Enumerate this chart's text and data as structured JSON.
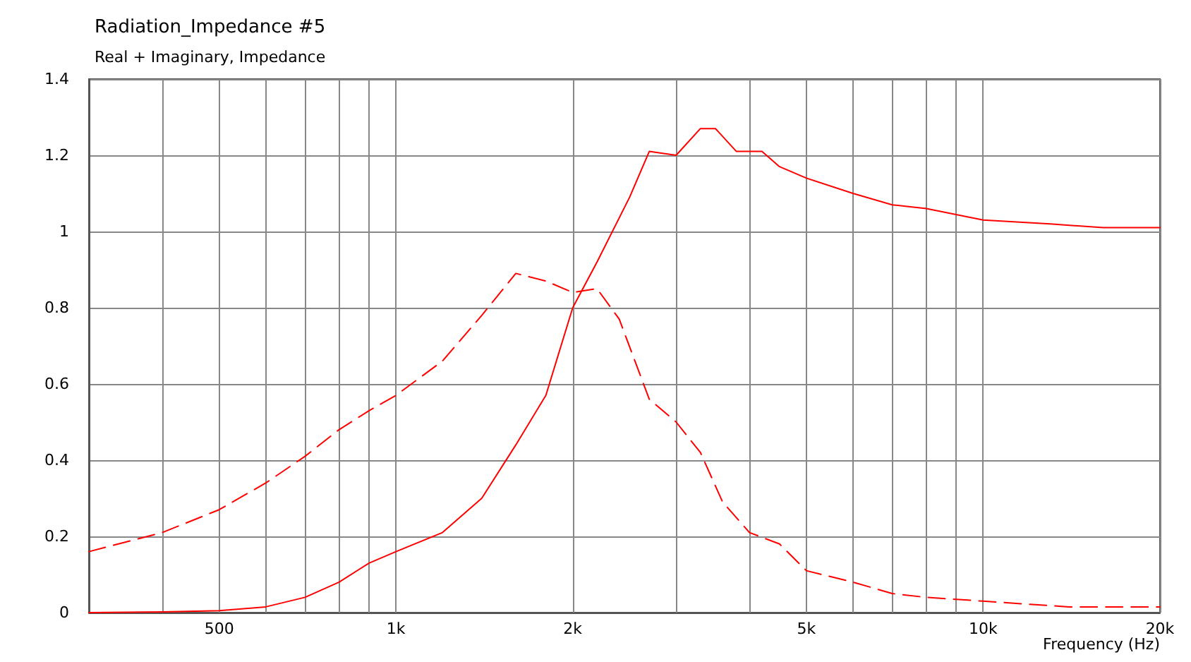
{
  "chart_data": {
    "type": "line",
    "title": "Radiation_Impedance #5",
    "subtitle": "Real + Imaginary, Impedance",
    "xlabel": "Frequency (Hz)",
    "log": "x",
    "grid": true,
    "marker": "none",
    "xlim": [
      300,
      20000
    ],
    "xticks": [
      {
        "value": 400,
        "label": null
      },
      {
        "value": 500,
        "label": "500"
      },
      {
        "value": 600,
        "label": null
      },
      {
        "value": 700,
        "label": null
      },
      {
        "value": 800,
        "label": null
      },
      {
        "value": 900,
        "label": null
      },
      {
        "value": 1000,
        "label": "1k"
      },
      {
        "value": 2000,
        "label": "2k"
      },
      {
        "value": 3000,
        "label": null
      },
      {
        "value": 4000,
        "label": null
      },
      {
        "value": 5000,
        "label": "5k"
      },
      {
        "value": 6000,
        "label": null
      },
      {
        "value": 7000,
        "label": null
      },
      {
        "value": 8000,
        "label": null
      },
      {
        "value": 9000,
        "label": null
      },
      {
        "value": 10000,
        "label": "10k"
      },
      {
        "value": 20000,
        "label": "20k"
      }
    ],
    "ylim": [
      0,
      1.4
    ],
    "yticks": [
      0,
      0.2,
      0.4,
      0.6,
      0.8,
      1,
      1.2,
      1.4
    ],
    "series": [
      {
        "color": "#ff0000",
        "line_style": "solid",
        "x": [
          300,
          400,
          500,
          600,
          700,
          800,
          900,
          1000,
          1200,
          1400,
          1600,
          1800,
          2000,
          2200,
          2500,
          2700,
          3000,
          3300,
          3500,
          3800,
          4200,
          4500,
          5000,
          6000,
          7000,
          8000,
          10000,
          13000,
          16000,
          20000
        ],
        "values": [
          0.0,
          0.002,
          0.005,
          0.015,
          0.04,
          0.08,
          0.13,
          0.16,
          0.21,
          0.3,
          0.44,
          0.57,
          0.8,
          0.92,
          1.09,
          1.21,
          1.2,
          1.27,
          1.27,
          1.21,
          1.21,
          1.17,
          1.14,
          1.1,
          1.07,
          1.06,
          1.03,
          1.02,
          1.01,
          1.01
        ]
      },
      {
        "color": "#ff0000",
        "line_style": "dashed",
        "x": [
          300,
          400,
          500,
          600,
          700,
          800,
          900,
          1000,
          1200,
          1400,
          1600,
          1800,
          2000,
          2200,
          2400,
          2700,
          3000,
          3300,
          3600,
          4000,
          4500,
          5000,
          6000,
          7000,
          8000,
          10000,
          14000,
          20000
        ],
        "values": [
          0.16,
          0.21,
          0.27,
          0.34,
          0.41,
          0.48,
          0.53,
          0.57,
          0.66,
          0.78,
          0.89,
          0.87,
          0.84,
          0.85,
          0.77,
          0.56,
          0.5,
          0.42,
          0.29,
          0.21,
          0.18,
          0.11,
          0.08,
          0.05,
          0.04,
          0.03,
          0.015,
          0.015
        ]
      }
    ]
  }
}
